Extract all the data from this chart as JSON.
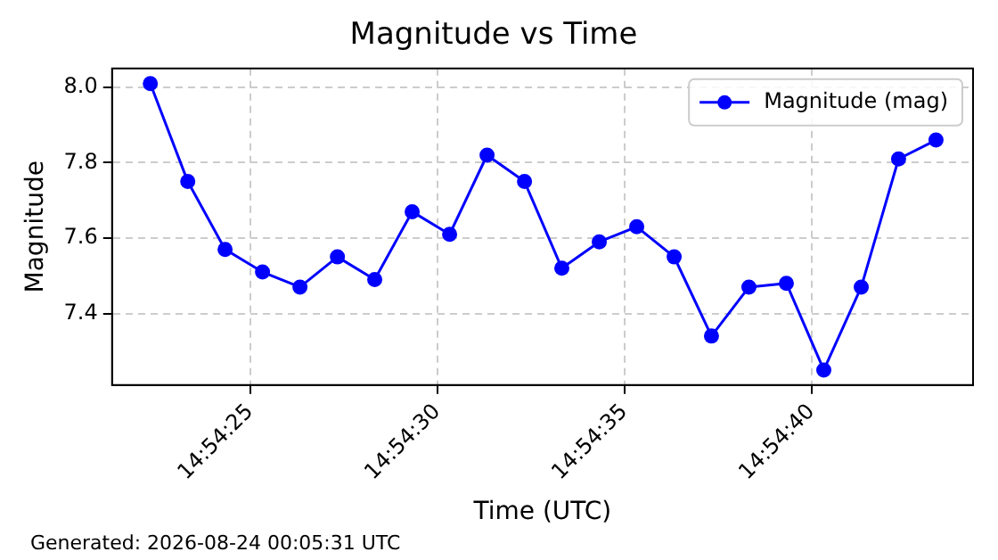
{
  "chart_data": {
    "type": "line",
    "title": "Magnitude vs Time",
    "xlabel": "Time (UTC)",
    "ylabel": "Magnitude",
    "x": [
      14.906203,
      14.906481,
      14.906758,
      14.907036,
      14.907314,
      14.907592,
      14.907869,
      14.908147,
      14.908425,
      14.908703,
      14.908981,
      14.909258,
      14.909536,
      14.909814,
      14.910092,
      14.910369,
      14.910647,
      14.910925,
      14.911203,
      14.911481,
      14.911758,
      14.912036
    ],
    "series": [
      {
        "name": "Magnitude (mag)",
        "color": "#0000ff",
        "values": [
          8.01,
          7.75,
          7.57,
          7.51,
          7.47,
          7.55,
          7.49,
          7.67,
          7.61,
          7.82,
          7.75,
          7.52,
          7.59,
          7.63,
          7.55,
          7.34,
          7.47,
          7.48,
          7.25,
          7.47,
          7.81,
          7.86
        ]
      }
    ],
    "xlim": [
      14.905919,
      14.912311
    ],
    "xticks": [
      {
        "value": 14.906944,
        "label": "14:54:25"
      },
      {
        "value": 14.908333,
        "label": "14:54:30"
      },
      {
        "value": 14.909722,
        "label": "14:54:35"
      },
      {
        "value": 14.911111,
        "label": "14:54:40"
      }
    ],
    "ylim": [
      7.21,
      8.05
    ],
    "yticks": [
      {
        "value": 7.4,
        "label": "7.4"
      },
      {
        "value": 7.6,
        "label": "7.6"
      },
      {
        "value": 7.8,
        "label": "7.8"
      },
      {
        "value": 8.0,
        "label": "8.0"
      }
    ],
    "grid": true,
    "legend": "top right",
    "marker": "circle",
    "line_style": "solid",
    "annotations": [
      "Generated: 2026-08-24 00:05:31 UTC"
    ]
  }
}
